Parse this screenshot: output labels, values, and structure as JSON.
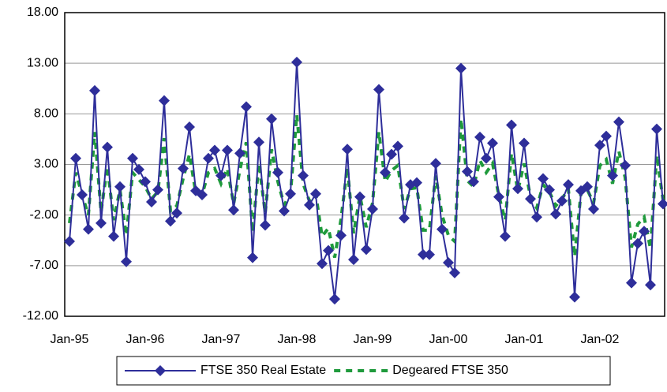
{
  "chart_data": {
    "type": "line",
    "categories": [
      "Jan-95",
      null,
      null,
      null,
      null,
      null,
      null,
      null,
      null,
      null,
      null,
      null,
      "Jan-96",
      null,
      null,
      null,
      null,
      null,
      null,
      null,
      null,
      null,
      null,
      null,
      "Jan-97",
      null,
      null,
      null,
      null,
      null,
      null,
      null,
      null,
      null,
      null,
      null,
      "Jan-98",
      null,
      null,
      null,
      null,
      null,
      null,
      null,
      null,
      null,
      null,
      null,
      "Jan-99",
      null,
      null,
      null,
      null,
      null,
      null,
      null,
      null,
      null,
      null,
      null,
      "Jan-00",
      null,
      null,
      null,
      null,
      null,
      null,
      null,
      null,
      null,
      null,
      null,
      "Jan-01",
      null,
      null,
      null,
      null,
      null,
      null,
      null,
      null,
      null,
      null,
      null,
      "Jan-02",
      null,
      null,
      null,
      null,
      null,
      null,
      null,
      null,
      null,
      null
    ],
    "series": [
      {
        "name": "FTSE 350 Real Estate",
        "color": "#2e2e9a",
        "values": [
          -4.6,
          3.6,
          0.0,
          -3.4,
          10.3,
          -2.8,
          4.7,
          -4.1,
          0.8,
          -6.6,
          3.6,
          2.5,
          1.3,
          -0.7,
          0.5,
          9.3,
          -2.6,
          -1.8,
          2.6,
          6.7,
          0.4,
          0.0,
          3.6,
          4.4,
          1.9,
          4.4,
          -1.5,
          4.1,
          8.7,
          -6.2,
          5.2,
          -3.0,
          7.5,
          2.2,
          -1.6,
          0.1,
          13.1,
          1.9,
          -1.0,
          0.1,
          -6.8,
          -5.5,
          -10.3,
          -4.0,
          4.5,
          -6.4,
          -0.2,
          -5.4,
          -1.4,
          10.4,
          2.2,
          4.0,
          4.8,
          -2.3,
          1.0,
          1.2,
          -5.9,
          -5.9,
          3.1,
          -3.4,
          -6.7,
          -7.7,
          12.5,
          2.3,
          1.3,
          5.7,
          3.6,
          5.1,
          -0.2,
          -4.1,
          6.9,
          0.6,
          5.1,
          -0.4,
          -2.2,
          1.6,
          0.5,
          -1.9,
          -0.6,
          1.0,
          -10.1,
          0.4,
          0.8,
          -1.4,
          4.9,
          5.8,
          1.9,
          7.2,
          2.9,
          -8.7,
          -4.8,
          -3.6,
          -8.9,
          6.5,
          -0.9
        ]
      },
      {
        "name": "Degeared FTSE 350",
        "color": "#1f9a3c",
        "dashed": true,
        "values": [
          -2.8,
          2.2,
          0,
          -2.0,
          6.2,
          -1.7,
          2.8,
          -2.5,
          0.5,
          -4.0,
          2.2,
          1.5,
          0.8,
          -0.4,
          0.3,
          5.6,
          -1.6,
          -1.1,
          1.6,
          4.0,
          0.2,
          0,
          2.2,
          2.6,
          1.1,
          2.6,
          -0.9,
          2.5,
          5.2,
          -3.7,
          3.1,
          -1.8,
          4.5,
          1.3,
          -1.0,
          0.1,
          7.9,
          1.1,
          -0.6,
          0.1,
          -4.1,
          -3.3,
          -6.2,
          -2.4,
          2.7,
          -3.8,
          -0.1,
          -3.2,
          -0.8,
          6.2,
          1.3,
          2.4,
          2.9,
          -1.4,
          0.6,
          0.7,
          -3.5,
          -3.5,
          1.9,
          -2.0,
          -4.0,
          -4.6,
          7.5,
          1.4,
          0.8,
          3.4,
          2.2,
          3.1,
          -0.1,
          -2.5,
          4.1,
          0.4,
          3.1,
          -0.2,
          -1.3,
          1.0,
          0.3,
          -1.1,
          -0.4,
          0.6,
          -6.1,
          0.2,
          0.5,
          -0.8,
          2.9,
          3.5,
          1.1,
          4.3,
          1.7,
          -5.2,
          -2.9,
          -2.2,
          -5.3,
          3.9,
          -0.5
        ]
      }
    ],
    "ylim": [
      -12,
      18
    ],
    "yticks": [
      {
        "value": -12,
        "label": "-12.00"
      },
      {
        "value": -7,
        "label": "-7.00"
      },
      {
        "value": -2,
        "label": "-2.00"
      },
      {
        "value": 3,
        "label": "3.00"
      },
      {
        "value": 8,
        "label": "8.00"
      },
      {
        "value": 13,
        "label": "13.00"
      },
      {
        "value": 18,
        "label": "18.00"
      }
    ],
    "grid": true,
    "legend": "bottom"
  }
}
